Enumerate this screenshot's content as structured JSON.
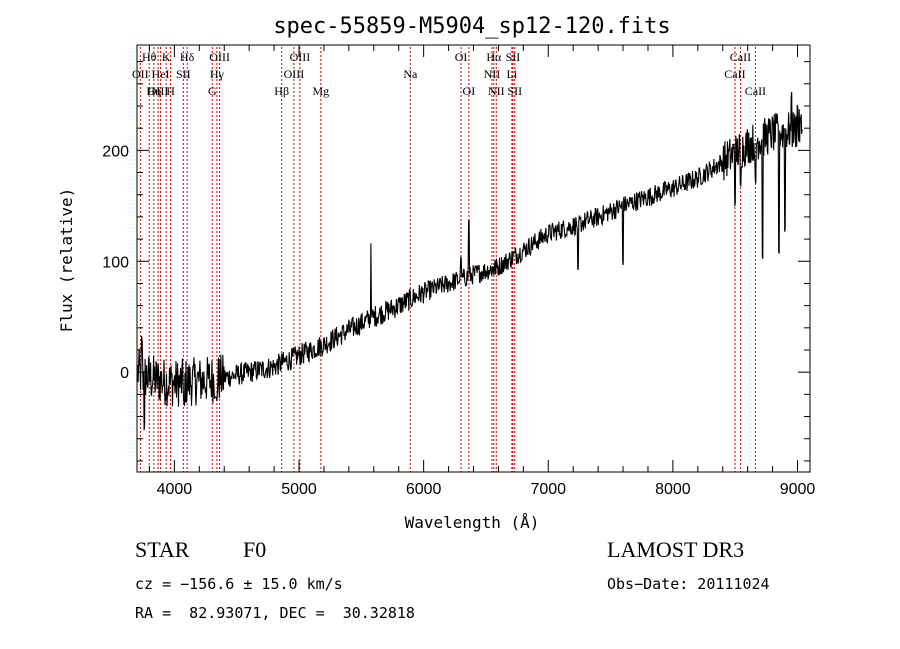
{
  "chart_data": {
    "type": "line",
    "title": "spec-55859-M5904_sp12-120.fits",
    "xlabel": "Wavelength (Å)",
    "ylabel": "Flux (relative)",
    "xlim": [
      3700,
      9100
    ],
    "ylim": [
      -90,
      295
    ],
    "xticks": [
      4000,
      5000,
      6000,
      7000,
      8000,
      9000
    ],
    "yticks": [
      0,
      100,
      200
    ],
    "line_color": "#000000",
    "marker_color": "#cc0000",
    "spectrum_trend": [
      [
        3700,
        0
      ],
      [
        3800,
        -5
      ],
      [
        3900,
        -8
      ],
      [
        4000,
        -10
      ],
      [
        4200,
        -8
      ],
      [
        4400,
        -5
      ],
      [
        4600,
        0
      ],
      [
        4800,
        5
      ],
      [
        5000,
        15
      ],
      [
        5200,
        25
      ],
      [
        5400,
        38
      ],
      [
        5600,
        50
      ],
      [
        5800,
        60
      ],
      [
        6000,
        72
      ],
      [
        6200,
        80
      ],
      [
        6400,
        88
      ],
      [
        6600,
        95
      ],
      [
        6800,
        110
      ],
      [
        7000,
        125
      ],
      [
        7200,
        132
      ],
      [
        7400,
        140
      ],
      [
        7600,
        150
      ],
      [
        7800,
        158
      ],
      [
        8000,
        166
      ],
      [
        8200,
        175
      ],
      [
        8400,
        190
      ],
      [
        8600,
        205
      ],
      [
        8800,
        215
      ],
      [
        9050,
        220
      ]
    ],
    "spectrum_features": [
      [
        3740,
        30
      ],
      [
        3760,
        -50
      ],
      [
        4080,
        -30
      ],
      [
        4340,
        -25
      ],
      [
        5577,
        120
      ],
      [
        6300,
        100
      ],
      [
        6363,
        135
      ],
      [
        6563,
        90
      ],
      [
        7240,
        90
      ],
      [
        7600,
        100
      ],
      [
        8498,
        150
      ],
      [
        8542,
        170
      ],
      [
        8662,
        170
      ],
      [
        8720,
        105
      ],
      [
        8850,
        110
      ],
      [
        8900,
        130
      ],
      [
        8950,
        250
      ],
      [
        9000,
        240
      ]
    ],
    "lines": [
      {
        "label": "Hθ",
        "wave": 3798,
        "row": 1
      },
      {
        "label": "OII",
        "wave": 3727,
        "row": 2
      },
      {
        "label": "OIII",
        "wave": 3869,
        "row": 3
      },
      {
        "label": "K",
        "wave": 3934,
        "row": 1
      },
      {
        "label": "HeI",
        "wave": 3889,
        "row": 2
      },
      {
        "label": "Hη",
        "wave": 3835,
        "row": 3
      },
      {
        "label": "SII",
        "wave": 4072,
        "row": 2
      },
      {
        "label": "H",
        "wave": 3969,
        "row": 3
      },
      {
        "label": "Hδ",
        "wave": 4102,
        "row": 1
      },
      {
        "label": "OIII",
        "wave": 4363,
        "row": 1
      },
      {
        "label": "Hγ",
        "wave": 4341,
        "row": 2
      },
      {
        "label": "G",
        "wave": 4304,
        "row": 3
      },
      {
        "label": "OIII",
        "wave": 5007,
        "row": 1
      },
      {
        "label": "OIII",
        "wave": 4959,
        "row": 2
      },
      {
        "label": "Hβ",
        "wave": 4861,
        "row": 3
      },
      {
        "label": "Mg",
        "wave": 5175,
        "row": 3
      },
      {
        "label": "Na",
        "wave": 5893,
        "row": 2
      },
      {
        "label": "OI",
        "wave": 6300,
        "row": 1
      },
      {
        "label": "OI",
        "wave": 6363,
        "row": 3
      },
      {
        "label": "Hα",
        "wave": 6563,
        "row": 1
      },
      {
        "label": "NII",
        "wave": 6548,
        "row": 2
      },
      {
        "label": "NII",
        "wave": 6583,
        "row": 3
      },
      {
        "label": "SII",
        "wave": 6716,
        "row": 1
      },
      {
        "label": "Li",
        "wave": 6708,
        "row": 2
      },
      {
        "label": "SII",
        "wave": 6731,
        "row": 3
      },
      {
        "label": "CaII",
        "wave": 8542,
        "row": 1
      },
      {
        "label": "CaII",
        "wave": 8498,
        "row": 2
      },
      {
        "label": "CaII",
        "wave": 8662,
        "row": 3
      }
    ]
  },
  "info": {
    "class": "STAR",
    "subclass": "F0",
    "survey": "LAMOST DR3",
    "cz": "cz = −156.6 ± 15.0 km/s",
    "obs_date": "Obs−Date: 20111024",
    "coords": "RA =  82.93071, DEC =  30.32818"
  }
}
